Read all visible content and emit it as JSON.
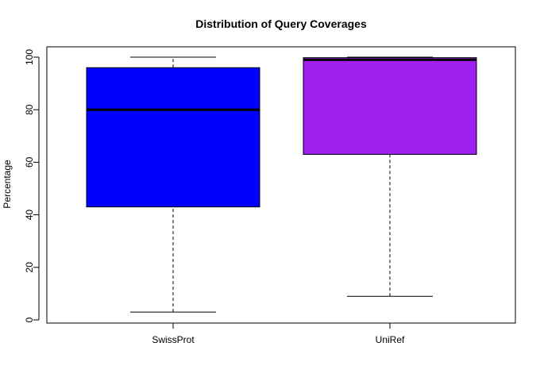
{
  "chart_data": {
    "type": "boxplot",
    "title": "Distribution of Query Coverages",
    "xlabel": "",
    "ylabel": "Percentage",
    "ylim": [
      0,
      100
    ],
    "yticks": [
      0,
      20,
      40,
      60,
      80,
      100
    ],
    "grid": false,
    "legend": "none",
    "categories": [
      "SwissProt",
      "UniRef"
    ],
    "boxes": [
      {
        "category": "SwissProt",
        "whisker_low": 3,
        "q1": 43,
        "median": 80,
        "q3": 96,
        "whisker_high": 100,
        "color": "#0000ff"
      },
      {
        "category": "UniRef",
        "whisker_low": 9,
        "q1": 63,
        "median": 99,
        "q3": 99.8,
        "whisker_high": 100,
        "color": "#a020f0"
      }
    ]
  }
}
